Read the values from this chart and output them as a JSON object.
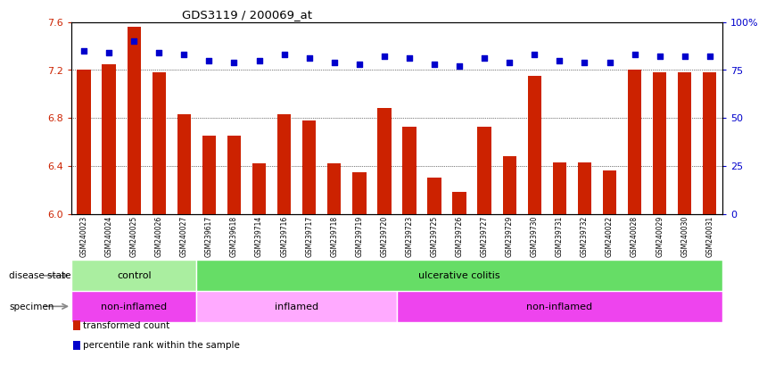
{
  "title": "GDS3119 / 200069_at",
  "samples": [
    "GSM240023",
    "GSM240024",
    "GSM240025",
    "GSM240026",
    "GSM240027",
    "GSM239617",
    "GSM239618",
    "GSM239714",
    "GSM239716",
    "GSM239717",
    "GSM239718",
    "GSM239719",
    "GSM239720",
    "GSM239723",
    "GSM239725",
    "GSM239726",
    "GSM239727",
    "GSM239729",
    "GSM239730",
    "GSM239731",
    "GSM239732",
    "GSM240022",
    "GSM240028",
    "GSM240029",
    "GSM240030",
    "GSM240031"
  ],
  "bar_values": [
    7.2,
    7.25,
    7.56,
    7.18,
    6.83,
    6.65,
    6.65,
    6.42,
    6.83,
    6.78,
    6.42,
    6.35,
    6.88,
    6.73,
    6.3,
    6.18,
    6.73,
    6.48,
    7.15,
    6.43,
    6.43,
    6.36,
    7.2,
    7.18,
    7.18,
    7.18
  ],
  "percentile_values": [
    85,
    84,
    90,
    84,
    83,
    80,
    79,
    80,
    83,
    81,
    79,
    78,
    82,
    81,
    78,
    77,
    81,
    79,
    83,
    80,
    79,
    79,
    83,
    82,
    82,
    82
  ],
  "bar_color": "#CC2200",
  "dot_color": "#0000CC",
  "y_min": 6.0,
  "y_max": 7.6,
  "yticks_left": [
    6.0,
    6.4,
    6.8,
    7.2,
    7.6
  ],
  "yticks_right": [
    0,
    25,
    50,
    75,
    100
  ],
  "ytick_labels_right": [
    "0",
    "25",
    "50",
    "75",
    "100%"
  ],
  "grid_values": [
    6.4,
    6.8,
    7.2
  ],
  "disease_groups": [
    {
      "label": "control",
      "start": 0,
      "end": 5,
      "color": "#AAEEA0"
    },
    {
      "label": "ulcerative colitis",
      "start": 5,
      "end": 26,
      "color": "#66DD66"
    }
  ],
  "specimen_groups": [
    {
      "label": "non-inflamed",
      "start": 0,
      "end": 5,
      "color": "#EE44EE"
    },
    {
      "label": "inflamed",
      "start": 5,
      "end": 13,
      "color": "#FFAAFF"
    },
    {
      "label": "non-inflamed",
      "start": 13,
      "end": 26,
      "color": "#EE44EE"
    }
  ],
  "legend": [
    {
      "color": "#CC2200",
      "label": "transformed count"
    },
    {
      "color": "#0000CC",
      "label": "percentile rank within the sample"
    }
  ],
  "disease_label": "disease state",
  "specimen_label": "specimen",
  "fig_bg": "#ffffff",
  "xtick_bg": "#DCDCDC"
}
